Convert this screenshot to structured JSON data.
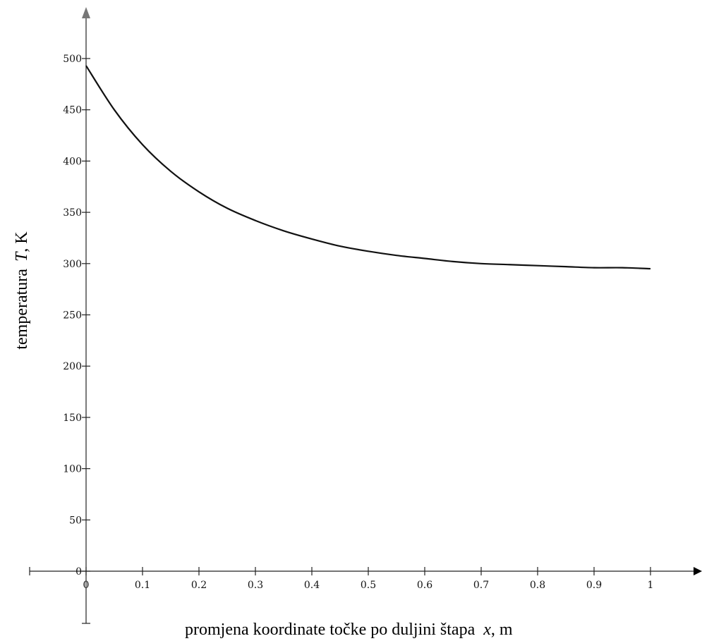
{
  "chart_data": {
    "type": "line",
    "title": "",
    "xlabel": "promjena koordinate točke po duljini štapa",
    "xlabel_var": "x",
    "xlabel_unit": ", m",
    "ylabel": "temperatura",
    "ylabel_var": "T",
    "ylabel_unit": ", K",
    "xlim": [
      0,
      1
    ],
    "ylim": [
      0,
      500
    ],
    "x_ticks": [
      "0",
      "0.1",
      "0.2",
      "0.3",
      "0.4",
      "0.5",
      "0.6",
      "0.7",
      "0.8",
      "0.9",
      "1"
    ],
    "y_ticks": [
      "0",
      "50",
      "100",
      "150",
      "200",
      "250",
      "300",
      "350",
      "400",
      "450",
      "500"
    ],
    "grid": false,
    "series": [
      {
        "x": [
          0,
          0.05,
          0.1,
          0.15,
          0.2,
          0.25,
          0.3,
          0.35,
          0.4,
          0.45,
          0.5,
          0.55,
          0.6,
          0.65,
          0.7,
          0.75,
          0.8,
          0.85,
          0.9,
          0.95,
          1.0
        ],
        "values": [
          493,
          450,
          416,
          390,
          370,
          354,
          342,
          332,
          324,
          317,
          312,
          308,
          305,
          302,
          300,
          299,
          298,
          297,
          296,
          296,
          295
        ]
      }
    ]
  }
}
